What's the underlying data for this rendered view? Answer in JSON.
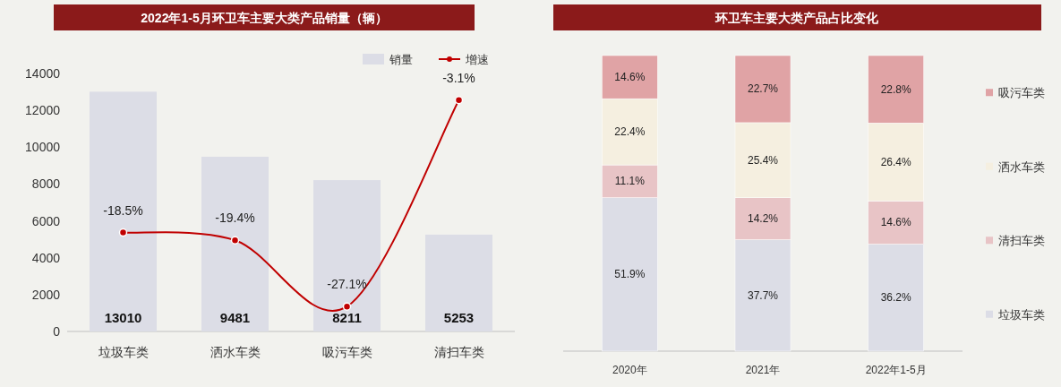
{
  "chart_data": [
    {
      "type": "bar",
      "title": "2022年1-5月环卫车主要大类产品销量（辆）",
      "categories": [
        "垃圾车类",
        "洒水车类",
        "吸污车类",
        "清扫车类"
      ],
      "series": [
        {
          "name": "销量",
          "color": "#dcdde6",
          "values": [
            13010,
            9481,
            8211,
            5253
          ],
          "value_labels": [
            "13010",
            "9481",
            "8211",
            "5253"
          ]
        },
        {
          "name": "增速",
          "type": "line",
          "axis": "y2",
          "color": "#c00000",
          "values": [
            -18.5,
            -19.4,
            -27.1,
            -3.1
          ],
          "value_labels": [
            "-18.5%",
            "-19.4%",
            "-27.1%",
            "-3.1%"
          ]
        }
      ],
      "ylim": [
        0,
        14000
      ],
      "yticks": [
        0,
        2000,
        4000,
        6000,
        8000,
        10000,
        12000,
        14000
      ],
      "y2lim": [
        -30,
        0
      ],
      "marker": "circle",
      "legend": "top right"
    },
    {
      "type": "bar",
      "title": "环卫车主要大类产品占比变化",
      "categories": [
        "2020年",
        "2021年",
        "2022年1-5月"
      ],
      "stacked": true,
      "series": [
        {
          "name": "垃圾车类",
          "color": "#dcdde6",
          "values": [
            51.9,
            37.7,
            36.2
          ],
          "value_labels": [
            "51.9%",
            "37.7%",
            "36.2%"
          ]
        },
        {
          "name": "清扫车类",
          "color": "#e8c4c6",
          "values": [
            11.1,
            14.2,
            14.6
          ],
          "value_labels": [
            "11.1%",
            "14.2%",
            "14.6%"
          ]
        },
        {
          "name": "洒水车类",
          "color": "#f5efe0",
          "values": [
            22.4,
            25.4,
            26.4
          ],
          "value_labels": [
            "22.4%",
            "25.4%",
            "26.4%"
          ]
        },
        {
          "name": "吸污车类",
          "color": "#e0a3a5",
          "values": [
            14.6,
            22.7,
            22.8
          ],
          "value_labels": [
            "14.6%",
            "22.7%",
            "22.8%"
          ]
        }
      ],
      "ylim": [
        0,
        100
      ],
      "tick_labels": "x",
      "legend": "right"
    }
  ]
}
